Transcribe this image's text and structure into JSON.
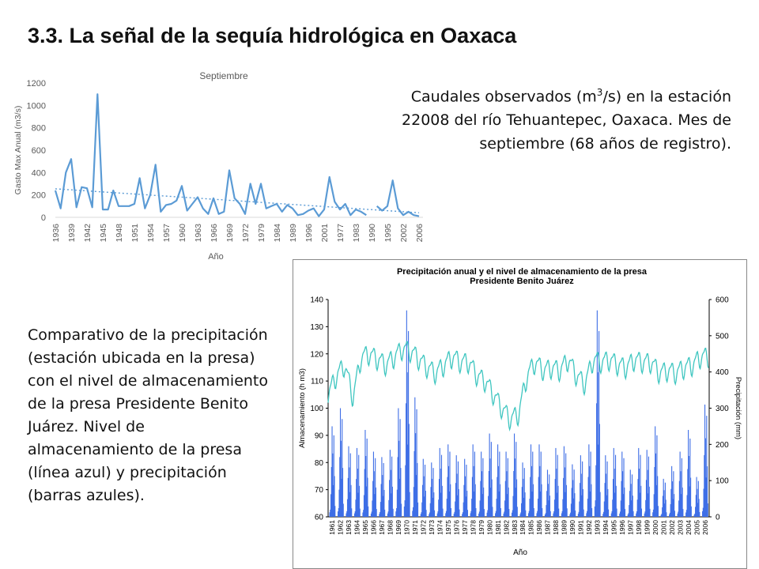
{
  "page": {
    "title": "3.3. La señal de la sequía hidrológica en Oaxaca",
    "caption1_pre": "Caudales observados (m",
    "caption1_sup": "3",
    "caption1_post": "/s) en la estación 22008 del río Tehuantepec, Oaxaca. Mes de septiembre (68 años de registro).",
    "caption2": "Comparativo de la precipitación (estación ubicada en la presa) con el nivel de almacenamiento de la presa Presidente Benito Juárez. Nivel de almacenamiento de la presa (línea azul) y precipitación (barras azules)."
  },
  "chart_data": [
    {
      "type": "line",
      "title": "Septiembre",
      "xlabel": "Año",
      "ylabel": "Gasto Max Anual (m3/s)",
      "ylim": [
        0,
        1200
      ],
      "yticks": [
        0,
        200,
        400,
        600,
        800,
        1000,
        1200
      ],
      "x_tick_labels": [
        "1936",
        "1939",
        "1942",
        "1945",
        "1948",
        "1951",
        "1954",
        "1957",
        "1960",
        "1963",
        "1966",
        "1969",
        "1972",
        "1979",
        "1984",
        "1989",
        "1996",
        "2001",
        "1977",
        "1983",
        "1990",
        "1995",
        "2002",
        "2006"
      ],
      "trendline": true,
      "colors": {
        "series": "#5b9bd5",
        "axis_text": "#595959"
      },
      "series": [
        {
          "values": [
            240,
            80,
            400,
            520,
            90,
            270,
            260,
            90,
            1100,
            70,
            70,
            240,
            100,
            100,
            100,
            120,
            350,
            80,
            200,
            470,
            50,
            110,
            120,
            150,
            280,
            60,
            120,
            180,
            80,
            30,
            170,
            30,
            50,
            420,
            170,
            120,
            30,
            300,
            120,
            300,
            80,
            100,
            120,
            50,
            110,
            80,
            20,
            30,
            60,
            80,
            10,
            70,
            360,
            140,
            70,
            120,
            20,
            70,
            50,
            20,
            null,
            100,
            60,
            100,
            330,
            80,
            20,
            50,
            20,
            10
          ]
        }
      ]
    },
    {
      "type": "bar",
      "title": "Precipitación anual y el nivel de almacenamiento de la presa\nPresidente Benito Juárez",
      "xlabel": "Año",
      "ylabel_left": "Almacenamiento (h m3)",
      "ylabel_right": "Precipitación (mm)",
      "ylim_left": [
        60,
        140
      ],
      "ylim_right": [
        0,
        600
      ],
      "yticks_left": [
        60,
        70,
        80,
        90,
        100,
        110,
        120,
        130,
        140
      ],
      "yticks_right": [
        0,
        100,
        200,
        300,
        400,
        500,
        600
      ],
      "x_tick_labels": [
        "1961",
        "1962",
        "1963",
        "1964",
        "1965",
        "1966",
        "1967",
        "1968",
        "1969",
        "1970",
        "1971",
        "1972",
        "1973",
        "1974",
        "1975",
        "1976",
        "1977",
        "1978",
        "1979",
        "1980",
        "1981",
        "1982",
        "1983",
        "1984",
        "1985",
        "1986",
        "1987",
        "1988",
        "1989",
        "1990",
        "1991",
        "1992",
        "1993",
        "1994",
        "1995",
        "1996",
        "1997",
        "1998",
        "1999",
        "2000",
        "2001",
        "2002",
        "2003",
        "2004",
        "2005",
        "2006"
      ],
      "colors": {
        "bars": "#3e6ee6",
        "storage_line": "#3fc6c0"
      },
      "series": [
        {
          "name": "Precipitación (mm)",
          "axis": "right",
          "annual_peak_values": [
            250,
            300,
            195,
            190,
            240,
            180,
            165,
            185,
            300,
            570,
            330,
            160,
            150,
            190,
            200,
            170,
            160,
            200,
            180,
            230,
            200,
            180,
            230,
            150,
            200,
            200,
            130,
            190,
            195,
            145,
            170,
            200,
            570,
            170,
            190,
            180,
            130,
            190,
            185,
            250,
            105,
            140,
            180,
            240,
            110,
            310
          ]
        },
        {
          "name": "Almacenamiento (h m3)",
          "axis": "left",
          "annual_mean_values": [
            105,
            112,
            116,
            104,
            119,
            120,
            118,
            116,
            119,
            122,
            121,
            118,
            115,
            113,
            116,
            119,
            117,
            117,
            112,
            110,
            105,
            100,
            96,
            98,
            112,
            117,
            114,
            115,
            114,
            118,
            112,
            109,
            118,
            117,
            118,
            116,
            115,
            118,
            117,
            117,
            113,
            114,
            113,
            115,
            116,
            119
          ]
        }
      ]
    }
  ]
}
